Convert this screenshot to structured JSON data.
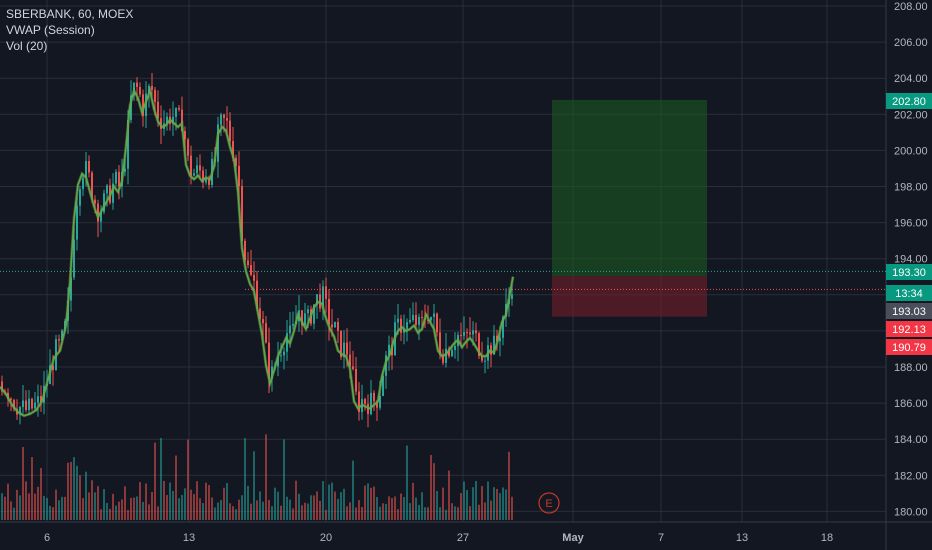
{
  "legend": {
    "symbol": "SBERBANK, 60, MOEX",
    "indicator1": "VWAP (Session)",
    "indicator2": "Vol (20)"
  },
  "colors": {
    "background": "#131722",
    "grid": "#2a2e39",
    "up": "#26a69a",
    "down": "#ef5350",
    "vwap_line": "#4caf50",
    "vwap_fill": "#e9a23b",
    "profit_zone": "#1b5e20",
    "loss_zone": "#7b1f2a",
    "price_line": "#26a69a",
    "tag_green": "#089981",
    "tag_red": "#f23645",
    "tag_grey": "#4a4e5a"
  },
  "chart_data": {
    "type": "candlestick",
    "ylim": [
      179.8,
      208.0
    ],
    "y_ticks": [
      "180.00",
      "182.00",
      "184.00",
      "186.00",
      "188.00",
      "190.00",
      "192.00",
      "194.00",
      "196.00",
      "198.00",
      "200.00",
      "202.00",
      "204.00",
      "206.00",
      "208.00"
    ],
    "x_ticks": [
      "6",
      "13",
      "20",
      "27",
      "May",
      "7",
      "13",
      "18"
    ],
    "grid": true,
    "price_levels": [
      {
        "label": "202.80",
        "value": 202.8,
        "color": "tag_green"
      },
      {
        "label": "193.30",
        "value": 193.3,
        "color": "tag_green"
      },
      {
        "label": "13:34",
        "value": 192.3,
        "color": "tag_green"
      },
      {
        "label": "193.03",
        "value": 191.3,
        "color": "tag_grey"
      },
      {
        "label": "192.13",
        "value": 190.5,
        "color": "tag_red"
      },
      {
        "label": "190.79",
        "value": 189.4,
        "color": "tag_red"
      }
    ],
    "position_box": {
      "profit_top": 202.8,
      "entry": 193.03,
      "stop": 190.79
    },
    "earnings_marker": "E",
    "price_path": [
      [
        0,
        187.2
      ],
      [
        6,
        186.8
      ],
      [
        12,
        186.2
      ],
      [
        18,
        185.8
      ],
      [
        24,
        185.6
      ],
      [
        30,
        185.7
      ],
      [
        36,
        185.9
      ],
      [
        42,
        186.4
      ],
      [
        48,
        187.6
      ],
      [
        54,
        188.8
      ],
      [
        60,
        189.2
      ],
      [
        66,
        190.6
      ],
      [
        70,
        193.0
      ],
      [
        74,
        196.5
      ],
      [
        78,
        198.4
      ],
      [
        82,
        199.0
      ],
      [
        86,
        198.8
      ],
      [
        90,
        198.0
      ],
      [
        94,
        197.2
      ],
      [
        98,
        196.6
      ],
      [
        102,
        197.0
      ],
      [
        106,
        197.4
      ],
      [
        110,
        197.8
      ],
      [
        114,
        198.3
      ],
      [
        118,
        198.0
      ],
      [
        122,
        198.6
      ],
      [
        126,
        200.5
      ],
      [
        130,
        202.8
      ],
      [
        134,
        203.6
      ],
      [
        138,
        203.2
      ],
      [
        142,
        202.4
      ],
      [
        146,
        203.0
      ],
      [
        150,
        203.6
      ],
      [
        154,
        202.6
      ],
      [
        158,
        201.9
      ],
      [
        162,
        201.6
      ],
      [
        166,
        201.7
      ],
      [
        170,
        202.0
      ],
      [
        174,
        201.8
      ],
      [
        178,
        201.6
      ],
      [
        182,
        201.8
      ],
      [
        186,
        199.5
      ],
      [
        190,
        198.9
      ],
      [
        194,
        198.7
      ],
      [
        198,
        198.9
      ],
      [
        202,
        198.6
      ],
      [
        206,
        198.8
      ],
      [
        210,
        198.7
      ],
      [
        214,
        199.4
      ],
      [
        218,
        201.2
      ],
      [
        222,
        201.6
      ],
      [
        226,
        201.4
      ],
      [
        230,
        200.5
      ],
      [
        234,
        199.8
      ],
      [
        238,
        198.0
      ],
      [
        242,
        194.9
      ],
      [
        246,
        193.6
      ],
      [
        250,
        192.9
      ],
      [
        254,
        192.5
      ],
      [
        258,
        191.3
      ],
      [
        262,
        190.1
      ],
      [
        266,
        188.4
      ],
      [
        270,
        187.4
      ],
      [
        274,
        188.1
      ],
      [
        278,
        188.9
      ],
      [
        282,
        189.4
      ],
      [
        286,
        189.9
      ],
      [
        290,
        189.6
      ],
      [
        294,
        190.3
      ],
      [
        298,
        191.2
      ],
      [
        302,
        190.8
      ],
      [
        306,
        190.4
      ],
      [
        310,
        191.0
      ],
      [
        314,
        191.6
      ],
      [
        318,
        191.9
      ],
      [
        322,
        191.8
      ],
      [
        326,
        191.0
      ],
      [
        330,
        190.4
      ],
      [
        334,
        190.0
      ],
      [
        338,
        189.2
      ],
      [
        342,
        189.0
      ],
      [
        346,
        188.9
      ],
      [
        350,
        188.2
      ],
      [
        354,
        186.4
      ],
      [
        358,
        186.0
      ],
      [
        362,
        186.2
      ],
      [
        366,
        186.1
      ],
      [
        370,
        186.0
      ],
      [
        374,
        186.2
      ],
      [
        378,
        186.4
      ],
      [
        382,
        187.8
      ],
      [
        386,
        188.6
      ],
      [
        390,
        189.0
      ],
      [
        394,
        189.8
      ],
      [
        398,
        190.3
      ],
      [
        402,
        190.5
      ],
      [
        406,
        190.3
      ],
      [
        410,
        190.4
      ],
      [
        414,
        190.6
      ],
      [
        418,
        190.2
      ],
      [
        422,
        190.4
      ],
      [
        426,
        191.2
      ],
      [
        430,
        190.8
      ],
      [
        434,
        190.4
      ],
      [
        438,
        189.2
      ],
      [
        442,
        188.9
      ],
      [
        446,
        189.0
      ],
      [
        450,
        189.3
      ],
      [
        454,
        189.6
      ],
      [
        458,
        189.8
      ],
      [
        462,
        189.4
      ],
      [
        466,
        189.7
      ],
      [
        470,
        189.9
      ],
      [
        474,
        189.6
      ],
      [
        478,
        189.2
      ],
      [
        482,
        188.9
      ],
      [
        486,
        188.9
      ],
      [
        490,
        189.2
      ],
      [
        494,
        189.1
      ],
      [
        498,
        189.8
      ],
      [
        502,
        190.8
      ],
      [
        506,
        191.2
      ],
      [
        510,
        192.4
      ],
      [
        513,
        193.3
      ]
    ]
  }
}
